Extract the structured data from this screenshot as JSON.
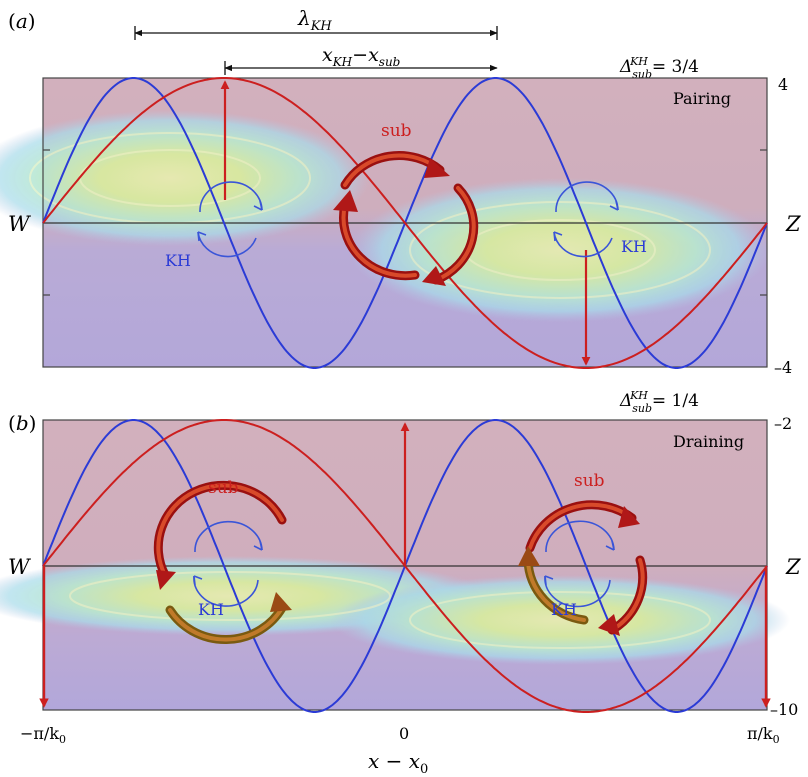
{
  "figure": {
    "x_axis": {
      "label_main": "x − x",
      "label_sub": "0",
      "tick_left_main": "−π/k",
      "tick_left_sub": "0",
      "tick_mid": "0",
      "tick_right_main": "π/k",
      "tick_right_sub": "0"
    },
    "colors": {
      "kh_wave": "#2b3bd6",
      "sub_wave": "#cc1f1f",
      "vortex_arrow_sub": "#b81414",
      "vortex_arrow_kh": "#3a55d8",
      "background_top": "#cfaeba",
      "background_bottom": "#b6a8d8"
    }
  },
  "panel_a": {
    "label": "(a)",
    "label_letter": "a",
    "regime": "Pairing",
    "delta_symbol": "Δ",
    "delta_sub": "sub",
    "delta_sup": "KH",
    "delta_value": "= 3/4",
    "y_top": "4",
    "y_bottom": "–4",
    "left_letter": "W",
    "right_letter": "Z",
    "lambda_main": "λ",
    "lambda_sub": "KH",
    "offset_a": "x",
    "offset_a_sub": "KH",
    "offset_minus": "−",
    "offset_b": "x",
    "offset_b_sub": "sub",
    "sub_label": "sub",
    "kh_label_1": "KH",
    "kh_label_2": "KH"
  },
  "panel_b": {
    "label": "(b)",
    "label_letter": "b",
    "regime": "Draining",
    "delta_symbol": "Δ",
    "delta_sub": "sub",
    "delta_sup": "KH",
    "delta_value": "= 1/4",
    "y_top": "–2",
    "y_bottom": "–10",
    "left_letter": "W",
    "right_letter": "Z",
    "sub_label_1": "sub",
    "sub_label_2": "sub",
    "kh_label_1": "KH",
    "kh_label_2": "KH"
  }
}
